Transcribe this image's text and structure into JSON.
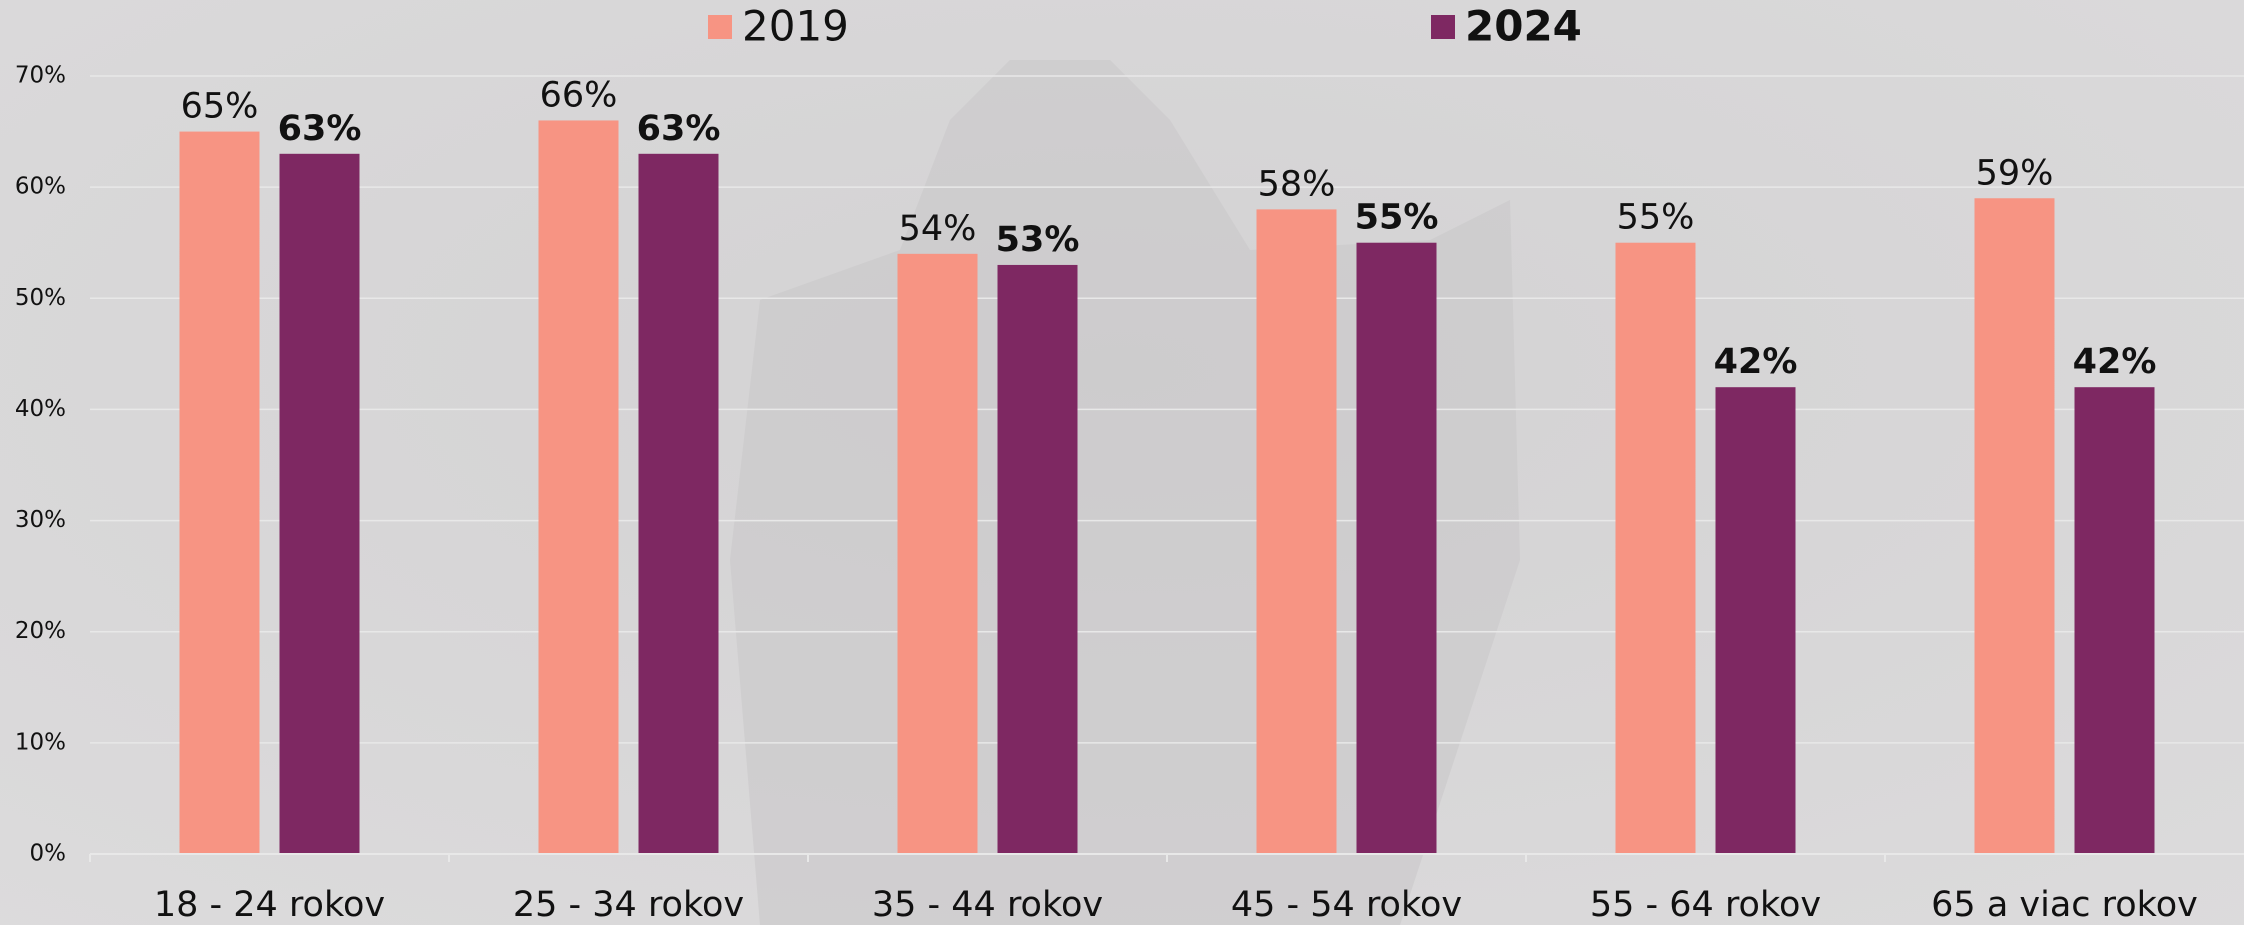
{
  "chart_data": {
    "type": "bar",
    "categories": [
      "18 - 24 rokov",
      "25 - 34 rokov",
      "35 - 44 rokov",
      "45 - 54 rokov",
      "55 - 64 rokov",
      "65 a viac rokov"
    ],
    "series": [
      {
        "name": "2019",
        "color": "#f79483",
        "values": [
          65,
          66,
          54,
          58,
          55,
          59
        ],
        "value_labels": [
          "65%",
          "66%",
          "54%",
          "58%",
          "55%",
          "59%"
        ]
      },
      {
        "name": "2024",
        "color": "#7e2862",
        "values": [
          63,
          63,
          53,
          55,
          42,
          42
        ],
        "value_labels": [
          "63%",
          "63%",
          "53%",
          "55%",
          "42%",
          "42%"
        ]
      }
    ],
    "ylim": [
      0,
      70
    ],
    "yticks": [
      {
        "value": 0,
        "label": "0%"
      },
      {
        "value": 10,
        "label": "10%"
      },
      {
        "value": 20,
        "label": "20%"
      },
      {
        "value": 30,
        "label": "30%"
      },
      {
        "value": 40,
        "label": "40%"
      },
      {
        "value": 50,
        "label": "50%"
      },
      {
        "value": 60,
        "label": "60%"
      },
      {
        "value": 70,
        "label": "70%"
      }
    ],
    "grid": true
  }
}
